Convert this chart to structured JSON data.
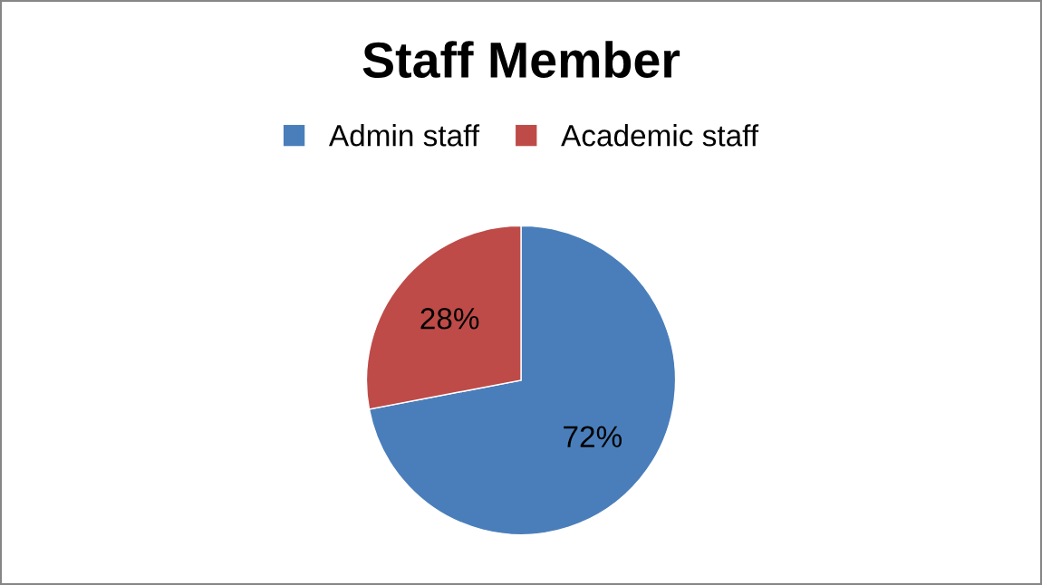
{
  "chart_data": {
    "type": "pie",
    "title": "Staff Member",
    "categories": [
      "Admin staff",
      "Academic staff"
    ],
    "values": [
      72,
      28
    ],
    "colors": [
      "#4a7ebb",
      "#be4b48"
    ],
    "value_labels": [
      "72%",
      "28%"
    ],
    "legend": "top"
  }
}
